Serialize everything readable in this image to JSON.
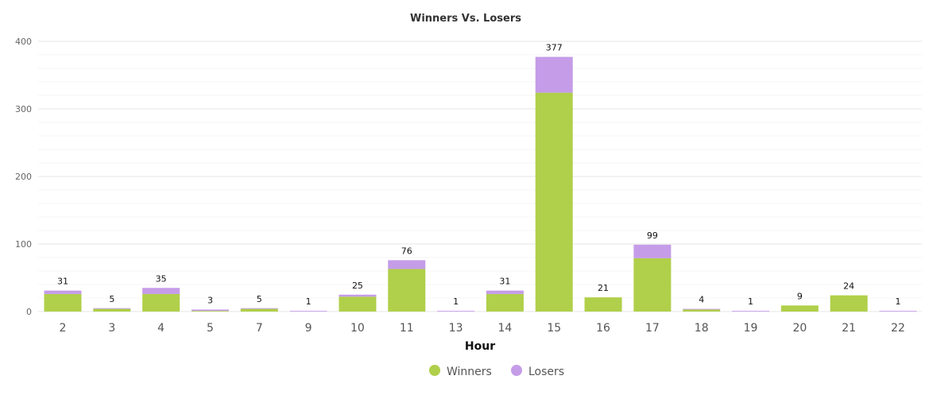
{
  "chart_data": {
    "type": "bar",
    "stacked": true,
    "title": "Winners Vs. Losers",
    "xlabel": "Hour",
    "ylabel": "",
    "ylim": [
      0,
      400
    ],
    "yticks": [
      0,
      100,
      200,
      300,
      400
    ],
    "grid": true,
    "legend": "bottom-center",
    "categories": [
      "2",
      "3",
      "4",
      "5",
      "7",
      "9",
      "10",
      "11",
      "13",
      "14",
      "15",
      "16",
      "17",
      "18",
      "19",
      "20",
      "21",
      "22"
    ],
    "series": [
      {
        "name": "Winners",
        "color": "#b0cf4a",
        "values": [
          26,
          4,
          26,
          1,
          4,
          0,
          22,
          63,
          0,
          26,
          324,
          21,
          79,
          3,
          0,
          9,
          24,
          0
        ]
      },
      {
        "name": "Losers",
        "color": "#c59ce8",
        "values": [
          5,
          1,
          9,
          2,
          1,
          1,
          3,
          13,
          1,
          5,
          53,
          0,
          20,
          1,
          1,
          0,
          0,
          1
        ]
      }
    ],
    "totals": [
      31,
      5,
      35,
      3,
      5,
      1,
      25,
      76,
      1,
      31,
      377,
      21,
      99,
      4,
      1,
      9,
      24,
      1
    ]
  }
}
